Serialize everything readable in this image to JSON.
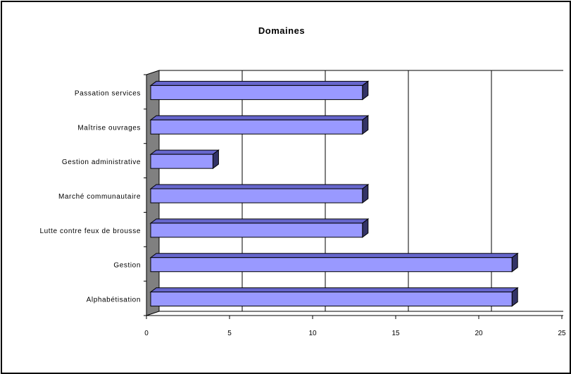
{
  "chart_data": {
    "type": "bar",
    "orientation": "horizontal",
    "title": "Domaines",
    "categories": [
      "Passation services",
      "Maîtrise ouvrages",
      "Gestion administrative",
      "Marché communautaire",
      "Lutte contre feux de brousse",
      "Gestion",
      "Alphabétisation"
    ],
    "values": [
      13,
      13,
      4,
      13,
      13,
      22,
      22
    ],
    "xlim": [
      0,
      25
    ],
    "xticks": [
      "0",
      "5",
      "10",
      "15",
      "20",
      "25"
    ],
    "xlabel": "",
    "ylabel": "",
    "grid": "vertical",
    "legend": "none",
    "colors": {
      "bar_face": "#9999ff",
      "bar_side": "#333366",
      "bar_top": "#6666cc",
      "wall": "#808080",
      "grid": "#000000"
    }
  }
}
